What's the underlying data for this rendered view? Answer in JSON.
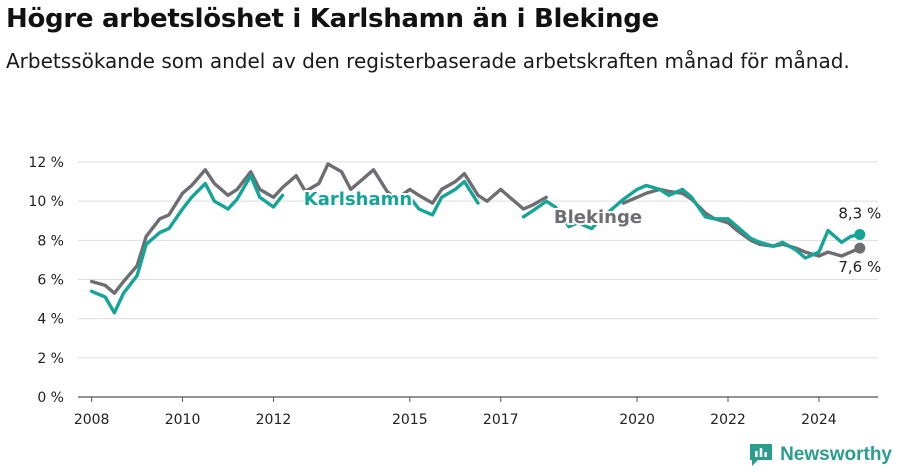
{
  "title": "Högre arbetslöshet i Karlshamn än i Blekinge",
  "subtitle": "Arbetssökande som andel av den registerbaserade arbetskraften månad för månad.",
  "brand": "Newsworthy",
  "colors": {
    "karlshamn": "#14a596",
    "blekinge": "#6e6e72",
    "grid": "#dddddd"
  },
  "chart_data": {
    "type": "line",
    "ylim": [
      0,
      12
    ],
    "xlim": [
      2007.7,
      2025.3
    ],
    "y_ticks": [
      0,
      2,
      4,
      6,
      8,
      10,
      12
    ],
    "y_tick_labels": [
      "0 %",
      "2 %",
      "4 %",
      "6 %",
      "8 %",
      "10 %",
      "12 %"
    ],
    "x_ticks": [
      2008,
      2010,
      2012,
      2015,
      2017,
      2020,
      2022,
      2024
    ],
    "x_tick_labels": [
      "2008",
      "2010",
      "2012",
      "2015",
      "2017",
      "2020",
      "2022",
      "2024"
    ],
    "series": [
      {
        "name": "Blekinge",
        "label": "Blekinge",
        "end_label": "7,6 %",
        "x": [
          2008.0,
          2008.3,
          2008.5,
          2008.7,
          2009.0,
          2009.2,
          2009.5,
          2009.7,
          2010.0,
          2010.2,
          2010.5,
          2010.7,
          2011.0,
          2011.2,
          2011.5,
          2011.7,
          2012.0,
          2012.2,
          2012.5,
          2012.7,
          2013.0,
          2013.2,
          2013.5,
          2013.7,
          2014.0,
          2014.2,
          2014.5,
          2014.7,
          2015.0,
          2015.2,
          2015.5,
          2015.7,
          2016.0,
          2016.2,
          2016.5,
          2016.7,
          2017.0,
          2017.2,
          2017.5,
          2017.7,
          2018.0,
          2018.2,
          2018.5,
          2018.7,
          2019.0,
          2019.2,
          2019.5,
          2019.7,
          2020.0,
          2020.2,
          2020.5,
          2020.7,
          2021.0,
          2021.2,
          2021.5,
          2021.7,
          2022.0,
          2022.2,
          2022.5,
          2022.7,
          2023.0,
          2023.2,
          2023.5,
          2023.7,
          2024.0,
          2024.2,
          2024.5,
          2024.7,
          2024.9
        ],
        "values": [
          5.9,
          5.7,
          5.3,
          5.9,
          6.7,
          8.2,
          9.1,
          9.3,
          10.4,
          10.8,
          11.6,
          10.9,
          10.3,
          10.6,
          11.5,
          10.6,
          10.2,
          10.7,
          11.3,
          10.5,
          10.9,
          11.9,
          11.5,
          10.6,
          11.2,
          11.6,
          10.5,
          10.1,
          10.6,
          10.3,
          9.9,
          10.6,
          11.0,
          11.4,
          10.3,
          10.0,
          10.6,
          10.2,
          9.6,
          9.8,
          10.2,
          9.9,
          9.5,
          9.3,
          9.1,
          9.4,
          9.8,
          9.9,
          10.2,
          10.4,
          10.6,
          10.5,
          10.4,
          10.1,
          9.4,
          9.1,
          8.9,
          8.5,
          8.0,
          7.8,
          7.7,
          7.8,
          7.6,
          7.4,
          7.2,
          7.4,
          7.2,
          7.4,
          7.6
        ],
        "hidden_ranges": [
          [
            2018.1,
            2019.5
          ]
        ]
      },
      {
        "name": "Karlshamn",
        "label": "Karlshamn",
        "end_label": "8,3 %",
        "x": [
          2008.0,
          2008.3,
          2008.5,
          2008.7,
          2009.0,
          2009.2,
          2009.5,
          2009.7,
          2010.0,
          2010.2,
          2010.5,
          2010.7,
          2011.0,
          2011.2,
          2011.5,
          2011.7,
          2012.0,
          2012.2,
          2012.5,
          2012.7,
          2013.0,
          2013.2,
          2013.5,
          2013.7,
          2014.0,
          2014.2,
          2014.5,
          2014.7,
          2015.0,
          2015.2,
          2015.5,
          2015.7,
          2016.0,
          2016.2,
          2016.5,
          2016.7,
          2017.0,
          2017.2,
          2017.5,
          2017.7,
          2018.0,
          2018.2,
          2018.5,
          2018.7,
          2019.0,
          2019.2,
          2019.5,
          2019.7,
          2020.0,
          2020.2,
          2020.5,
          2020.7,
          2021.0,
          2021.2,
          2021.5,
          2021.7,
          2022.0,
          2022.2,
          2022.5,
          2022.7,
          2023.0,
          2023.2,
          2023.5,
          2023.7,
          2024.0,
          2024.2,
          2024.5,
          2024.7,
          2024.9
        ],
        "values": [
          5.4,
          5.1,
          4.3,
          5.3,
          6.2,
          7.8,
          8.4,
          8.6,
          9.6,
          10.2,
          10.9,
          10.0,
          9.6,
          10.1,
          11.3,
          10.2,
          9.7,
          10.3,
          11.0,
          10.1,
          10.4,
          11.6,
          11.1,
          10.1,
          10.9,
          11.1,
          9.2,
          9.6,
          10.2,
          9.6,
          9.3,
          10.2,
          10.6,
          11.0,
          9.9,
          9.3,
          10.3,
          10.0,
          9.2,
          9.5,
          10.0,
          9.7,
          8.7,
          8.9,
          8.6,
          9.1,
          9.7,
          10.1,
          10.6,
          10.8,
          10.6,
          10.3,
          10.6,
          10.2,
          9.2,
          9.1,
          9.1,
          8.7,
          8.1,
          7.9,
          7.7,
          7.9,
          7.5,
          7.1,
          7.4,
          8.5,
          7.9,
          8.2,
          8.3
        ],
        "hidden_ranges": [
          [
            2012.5,
            2014.7
          ],
          [
            2016.7,
            2017.4
          ]
        ]
      }
    ]
  }
}
